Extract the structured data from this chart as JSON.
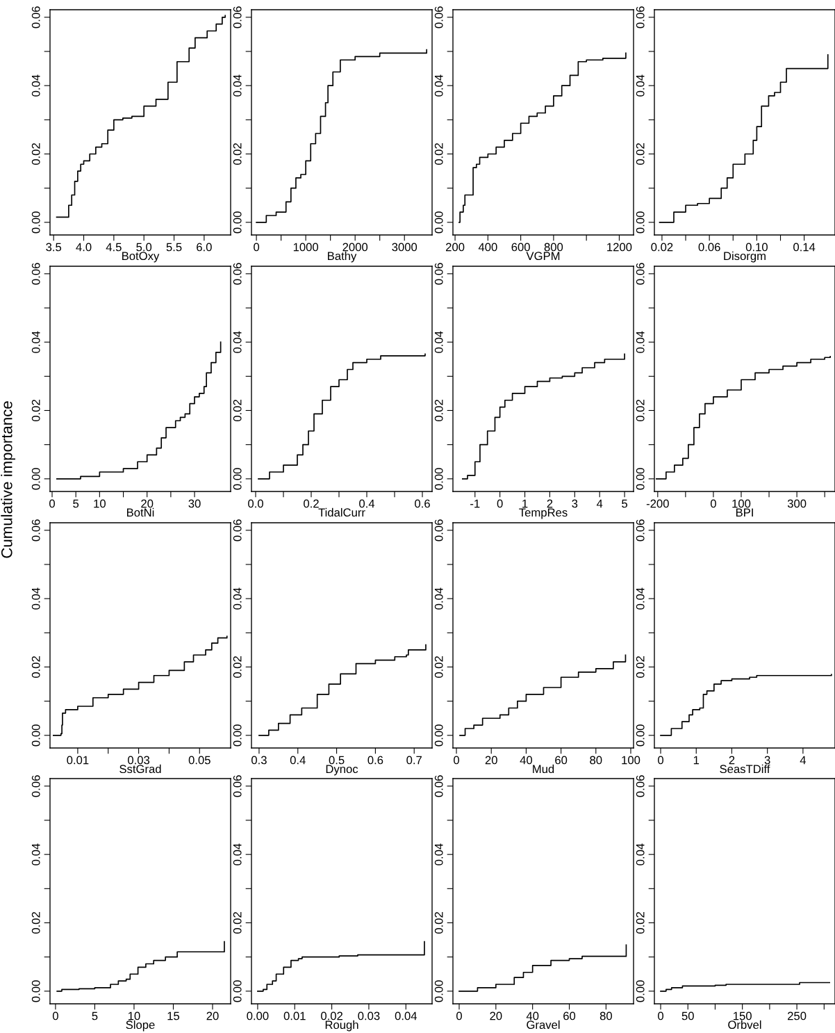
{
  "chart_data": [
    {
      "type": "step",
      "xlabel": "BotOxy",
      "color": "#000000",
      "x": [
        3.55,
        3.75,
        3.8,
        3.85,
        3.9,
        3.95,
        4.0,
        4.1,
        4.2,
        4.3,
        4.4,
        4.5,
        4.65,
        4.8,
        5.0,
        5.2,
        5.4,
        5.55,
        5.75,
        5.85,
        6.05,
        6.2,
        6.3,
        6.35
      ],
      "values": [
        0.0015,
        0.005,
        0.008,
        0.012,
        0.015,
        0.017,
        0.018,
        0.02,
        0.022,
        0.023,
        0.027,
        0.03,
        0.0305,
        0.031,
        0.034,
        0.036,
        0.041,
        0.047,
        0.051,
        0.054,
        0.056,
        0.058,
        0.06,
        0.0605
      ],
      "xlim": [
        3.44,
        6.44
      ],
      "xticks": [
        3.5,
        {
          "value": 4.0,
          "label": "4.0"
        },
        4.5,
        {
          "value": 5.0,
          "label": "5.0"
        },
        5.5,
        {
          "value": 6.0,
          "label": "6.0"
        }
      ],
      "ylim": [
        -0.0037,
        0.0622
      ],
      "yticks": [
        {
          "value": 0,
          "label": "0.00"
        },
        {
          "value": 0.01,
          "label": null
        },
        {
          "value": 0.02,
          "label": "0.02"
        },
        {
          "value": 0.03,
          "label": null
        },
        {
          "value": 0.04,
          "label": "0.04"
        },
        {
          "value": 0.05,
          "label": null
        },
        {
          "value": 0.06,
          "label": "0.06"
        }
      ]
    },
    {
      "type": "step",
      "xlabel": "Bathy",
      "color": "#000000",
      "x": [
        0,
        200,
        400,
        600,
        700,
        800,
        900,
        1000,
        1100,
        1200,
        1300,
        1400,
        1450,
        1550,
        1700,
        2000,
        2500,
        3450,
        3450
      ],
      "values": [
        0,
        0.002,
        0.003,
        0.006,
        0.01,
        0.013,
        0.014,
        0.018,
        0.023,
        0.026,
        0.031,
        0.035,
        0.04,
        0.044,
        0.0475,
        0.0485,
        0.0495,
        0.0495,
        0.0505
      ],
      "xlim": [
        -100,
        3560
      ],
      "xticks": [
        0,
        {
          "value": 500,
          "label": null
        },
        1000,
        {
          "value": 1500,
          "label": null
        },
        2000,
        {
          "value": 2500,
          "label": null
        },
        3000
      ],
      "ylim": [
        -0.0037,
        0.0622
      ],
      "yticks": [
        {
          "value": 0,
          "label": "0.00"
        },
        {
          "value": 0.01,
          "label": null
        },
        {
          "value": 0.02,
          "label": "0.02"
        },
        {
          "value": 0.03,
          "label": null
        },
        {
          "value": 0.04,
          "label": "0.04"
        },
        {
          "value": 0.05,
          "label": null
        },
        {
          "value": 0.06,
          "label": "0.06"
        }
      ]
    },
    {
      "type": "step",
      "xlabel": "VGPM",
      "color": "#000000",
      "x": [
        225,
        230,
        250,
        260,
        300,
        310,
        330,
        350,
        400,
        450,
        500,
        550,
        600,
        650,
        700,
        750,
        800,
        850,
        900,
        950,
        1000,
        1100,
        1240,
        1240
      ],
      "values": [
        0,
        0.003,
        0.005,
        0.008,
        0.008,
        0.016,
        0.017,
        0.019,
        0.02,
        0.022,
        0.024,
        0.026,
        0.029,
        0.031,
        0.032,
        0.034,
        0.037,
        0.04,
        0.043,
        0.047,
        0.0475,
        0.048,
        0.048,
        0.0495
      ],
      "xlim": [
        187,
        1287
      ],
      "xticks": [
        200,
        400,
        600,
        800,
        {
          "value": 1000,
          "label": null
        },
        1200
      ],
      "ylim": [
        -0.0037,
        0.0622
      ],
      "yticks": [
        {
          "value": 0,
          "label": "0.00"
        },
        {
          "value": 0.01,
          "label": null
        },
        {
          "value": 0.02,
          "label": "0.02"
        },
        {
          "value": 0.03,
          "label": null
        },
        {
          "value": 0.04,
          "label": "0.04"
        },
        {
          "value": 0.05,
          "label": null
        },
        {
          "value": 0.06,
          "label": "0.06"
        }
      ]
    },
    {
      "type": "step",
      "xlabel": "Disorgm",
      "color": "#000000",
      "x": [
        0.018,
        0.03,
        0.04,
        0.05,
        0.06,
        0.07,
        0.075,
        0.08,
        0.09,
        0.097,
        0.1,
        0.104,
        0.11,
        0.115,
        0.12,
        0.125,
        0.16,
        0.16
      ],
      "values": [
        0,
        0.003,
        0.005,
        0.0055,
        0.007,
        0.01,
        0.013,
        0.017,
        0.02,
        0.024,
        0.028,
        0.034,
        0.037,
        0.038,
        0.041,
        0.045,
        0.045,
        0.049
      ],
      "xlim": [
        0.0136,
        0.166
      ],
      "xticks": [
        {
          "value": 0.02,
          "label": "0.02"
        },
        {
          "value": 0.04,
          "label": null
        },
        {
          "value": 0.06,
          "label": "0.06"
        },
        {
          "value": 0.08,
          "label": null
        },
        {
          "value": 0.1,
          "label": "0.10"
        },
        {
          "value": 0.12,
          "label": null
        },
        {
          "value": 0.14,
          "label": "0.14"
        }
      ],
      "ylim": [
        -0.0037,
        0.0622
      ],
      "yticks": [
        {
          "value": 0,
          "label": "0.00"
        },
        {
          "value": 0.01,
          "label": null
        },
        {
          "value": 0.02,
          "label": "0.02"
        },
        {
          "value": 0.03,
          "label": null
        },
        {
          "value": 0.04,
          "label": "0.04"
        },
        {
          "value": 0.05,
          "label": null
        },
        {
          "value": 0.06,
          "label": "0.06"
        }
      ]
    },
    {
      "type": "step",
      "xlabel": "BotNi",
      "ylabel": "Cumulative importance",
      "color": "#000000",
      "x": [
        1,
        5,
        6,
        10,
        15,
        18,
        20,
        22,
        23,
        24,
        26,
        27,
        28,
        29,
        30,
        31,
        32,
        32.5,
        33.5,
        34.5,
        35.5,
        35.5
      ],
      "values": [
        0,
        0,
        0.0007,
        0.002,
        0.003,
        0.005,
        0.007,
        0.009,
        0.012,
        0.015,
        0.017,
        0.018,
        0.019,
        0.022,
        0.024,
        0.025,
        0.027,
        0.031,
        0.034,
        0.037,
        0.039,
        0.04
      ],
      "xlim": [
        -0.44,
        37.6
      ],
      "xticks": [
        0,
        5,
        10,
        {
          "value": 15,
          "label": null
        },
        20,
        {
          "value": 25,
          "label": null
        },
        30
      ],
      "ylim": [
        -0.0037,
        0.0622
      ],
      "yticks": [
        {
          "value": 0,
          "label": "0.00"
        },
        {
          "value": 0.01,
          "label": null
        },
        {
          "value": 0.02,
          "label": "0.02"
        },
        {
          "value": 0.03,
          "label": null
        },
        {
          "value": 0.04,
          "label": "0.04"
        },
        {
          "value": 0.05,
          "label": null
        },
        {
          "value": 0.06,
          "label": "0.06"
        }
      ]
    },
    {
      "type": "step",
      "xlabel": "TidalCurr",
      "color": "#000000",
      "x": [
        0.01,
        0.05,
        0.1,
        0.15,
        0.17,
        0.19,
        0.21,
        0.24,
        0.27,
        0.3,
        0.33,
        0.35,
        0.4,
        0.45,
        0.61,
        0.61
      ],
      "values": [
        0,
        0.002,
        0.004,
        0.007,
        0.01,
        0.014,
        0.019,
        0.023,
        0.027,
        0.029,
        0.032,
        0.034,
        0.035,
        0.036,
        0.036,
        0.0365
      ],
      "xlim": [
        -0.015,
        0.635
      ],
      "xticks": [
        {
          "value": 0,
          "label": "0.0"
        },
        {
          "value": 0.1,
          "label": null
        },
        0.2,
        {
          "value": 0.3,
          "label": null
        },
        0.4,
        {
          "value": 0.5,
          "label": null
        },
        0.6
      ],
      "ylim": [
        -0.0037,
        0.0622
      ],
      "yticks": [
        {
          "value": 0,
          "label": "0.00"
        },
        {
          "value": 0.01,
          "label": null
        },
        {
          "value": 0.02,
          "label": "0.02"
        },
        {
          "value": 0.03,
          "label": null
        },
        {
          "value": 0.04,
          "label": "0.04"
        },
        {
          "value": 0.05,
          "label": null
        },
        {
          "value": 0.06,
          "label": "0.06"
        }
      ]
    },
    {
      "type": "step",
      "xlabel": "TempRes",
      "color": "#000000",
      "x": [
        -1.5,
        -1.3,
        -1,
        -0.8,
        -0.5,
        -0.2,
        0,
        0.2,
        0.5,
        1,
        1.5,
        2,
        2.5,
        3,
        3.3,
        3.8,
        4.2,
        5,
        5
      ],
      "values": [
        0,
        0.001,
        0.005,
        0.01,
        0.014,
        0.018,
        0.021,
        0.023,
        0.025,
        0.027,
        0.0285,
        0.0295,
        0.03,
        0.031,
        0.0325,
        0.034,
        0.035,
        0.0355,
        0.0365
      ],
      "xlim": [
        -1.885,
        5.36
      ],
      "xticks": [
        {
          "value": -1,
          "label": "-1"
        },
        0,
        1,
        2,
        3,
        4,
        5
      ],
      "ylim": [
        -0.0037,
        0.0622
      ],
      "yticks": [
        {
          "value": 0,
          "label": "0.00"
        },
        {
          "value": 0.01,
          "label": null
        },
        {
          "value": 0.02,
          "label": "0.02"
        },
        {
          "value": 0.03,
          "label": null
        },
        {
          "value": 0.04,
          "label": "0.04"
        },
        {
          "value": 0.05,
          "label": null
        },
        {
          "value": 0.06,
          "label": "0.06"
        }
      ]
    },
    {
      "type": "step",
      "xlabel": "BPI",
      "color": "#000000",
      "x": [
        -205,
        -175,
        -170,
        -140,
        -110,
        -90,
        -70,
        -50,
        -30,
        0,
        50,
        100,
        150,
        200,
        250,
        300,
        350,
        400,
        420
      ],
      "values": [
        0,
        0,
        0.002,
        0.004,
        0.006,
        0.01,
        0.015,
        0.019,
        0.022,
        0.024,
        0.026,
        0.029,
        0.031,
        0.032,
        0.033,
        0.034,
        0.035,
        0.0355,
        0.0358
      ],
      "xlim": [
        -212,
        437
      ],
      "xticks": [
        {
          "value": -200,
          "label": "-200"
        },
        {
          "value": -100,
          "label": null
        },
        0,
        100,
        {
          "value": 200,
          "label": null
        },
        300,
        {
          "value": 400,
          "label": null
        }
      ],
      "ylim": [
        -0.0037,
        0.0622
      ],
      "yticks": [
        {
          "value": 0,
          "label": "0.00"
        },
        {
          "value": 0.01,
          "label": null
        },
        {
          "value": 0.02,
          "label": "0.02"
        },
        {
          "value": 0.03,
          "label": null
        },
        {
          "value": 0.04,
          "label": "0.04"
        },
        {
          "value": 0.05,
          "label": null
        },
        {
          "value": 0.06,
          "label": "0.06"
        }
      ]
    },
    {
      "type": "step",
      "xlabel": "SstGrad",
      "color": "#000000",
      "x": [
        0.002,
        0.0045,
        0.0048,
        0.005,
        0.006,
        0.01,
        0.015,
        0.02,
        0.025,
        0.03,
        0.035,
        0.04,
        0.045,
        0.048,
        0.052,
        0.054,
        0.056,
        0.059,
        0.059
      ],
      "values": [
        0,
        0.0005,
        0.003,
        0.0065,
        0.0075,
        0.0085,
        0.011,
        0.012,
        0.0135,
        0.0155,
        0.0175,
        0.019,
        0.0215,
        0.0235,
        0.025,
        0.027,
        0.0285,
        0.0285,
        0.029
      ],
      "xlim": [
        0.0009,
        0.0602
      ],
      "xticks": [
        0.01,
        {
          "value": 0.02,
          "label": null
        },
        0.03,
        {
          "value": 0.04,
          "label": null
        },
        0.05
      ],
      "ylim": [
        -0.0037,
        0.0622
      ],
      "yticks": [
        {
          "value": 0,
          "label": "0.00"
        },
        {
          "value": 0.01,
          "label": null
        },
        {
          "value": 0.02,
          "label": "0.02"
        },
        {
          "value": 0.03,
          "label": null
        },
        {
          "value": 0.04,
          "label": "0.04"
        },
        {
          "value": 0.05,
          "label": null
        },
        {
          "value": 0.06,
          "label": "0.06"
        }
      ]
    },
    {
      "type": "step",
      "xlabel": "Dynoc",
      "color": "#000000",
      "x": [
        0.3,
        0.32,
        0.325,
        0.35,
        0.38,
        0.41,
        0.45,
        0.48,
        0.51,
        0.55,
        0.6,
        0.65,
        0.68,
        0.685,
        0.73,
        0.73
      ],
      "values": [
        0,
        0,
        0.0015,
        0.0035,
        0.006,
        0.008,
        0.012,
        0.015,
        0.018,
        0.021,
        0.022,
        0.023,
        0.0235,
        0.025,
        0.0255,
        0.0265
      ],
      "xlim": [
        0.2804,
        0.7462
      ],
      "xticks": [
        0.3,
        0.4,
        0.5,
        0.6,
        0.7
      ],
      "ylim": [
        -0.0037,
        0.0622
      ],
      "yticks": [
        {
          "value": 0,
          "label": "0.00"
        },
        {
          "value": 0.01,
          "label": null
        },
        {
          "value": 0.02,
          "label": "0.02"
        },
        {
          "value": 0.03,
          "label": null
        },
        {
          "value": 0.04,
          "label": "0.04"
        },
        {
          "value": 0.05,
          "label": null
        },
        {
          "value": 0.06,
          "label": "0.06"
        }
      ]
    },
    {
      "type": "step",
      "xlabel": "Mud",
      "color": "#000000",
      "x": [
        2,
        5,
        10,
        15,
        25,
        30,
        35,
        40,
        50,
        60,
        70,
        80,
        90,
        97,
        97
      ],
      "values": [
        0,
        0.002,
        0.003,
        0.005,
        0.006,
        0.008,
        0.01,
        0.012,
        0.014,
        0.017,
        0.0185,
        0.0195,
        0.0215,
        0.023,
        0.0235
      ],
      "xlim": [
        -2,
        101.6
      ],
      "xticks": [
        0,
        20,
        40,
        60,
        80,
        100
      ],
      "ylim": [
        -0.0037,
        0.0622
      ],
      "yticks": [
        {
          "value": 0,
          "label": "0.00"
        },
        {
          "value": 0.01,
          "label": null
        },
        {
          "value": 0.02,
          "label": "0.02"
        },
        {
          "value": 0.03,
          "label": null
        },
        {
          "value": 0.04,
          "label": "0.04"
        },
        {
          "value": 0.05,
          "label": null
        },
        {
          "value": 0.06,
          "label": "0.06"
        }
      ]
    },
    {
      "type": "step",
      "xlabel": "SeasTDiff",
      "color": "#000000",
      "x": [
        0,
        0.3,
        0.6,
        0.8,
        0.9,
        1.1,
        1.2,
        1.3,
        1.5,
        1.7,
        2.0,
        2.5,
        2.7,
        4.8,
        4.8
      ],
      "values": [
        0,
        0.002,
        0.004,
        0.006,
        0.0075,
        0.008,
        0.012,
        0.013,
        0.015,
        0.016,
        0.0165,
        0.017,
        0.0175,
        0.0175,
        0.0178
      ],
      "xlim": [
        -0.176,
        4.9
      ],
      "xticks": [
        0,
        1,
        2,
        3,
        4
      ],
      "ylim": [
        -0.0037,
        0.0622
      ],
      "yticks": [
        {
          "value": 0,
          "label": "0.00"
        },
        {
          "value": 0.01,
          "label": null
        },
        {
          "value": 0.02,
          "label": "0.02"
        },
        {
          "value": 0.03,
          "label": null
        },
        {
          "value": 0.04,
          "label": "0.04"
        },
        {
          "value": 0.05,
          "label": null
        },
        {
          "value": 0.06,
          "label": "0.06"
        }
      ]
    },
    {
      "type": "step",
      "xlabel": "Slope",
      "color": "#000000",
      "x": [
        0.2,
        0.8,
        3,
        5,
        7,
        8,
        9,
        9.5,
        10.5,
        11.5,
        12.5,
        14,
        15.5,
        21.5,
        21.5
      ],
      "values": [
        0,
        0.0005,
        0.0007,
        0.001,
        0.002,
        0.003,
        0.0035,
        0.005,
        0.007,
        0.008,
        0.009,
        0.01,
        0.0115,
        0.0115,
        0.0145
      ],
      "xlim": [
        -0.7,
        22.3
      ],
      "xticks": [
        0,
        5,
        10,
        15,
        20
      ],
      "ylim": [
        -0.0037,
        0.0622
      ],
      "yticks": [
        {
          "value": 0,
          "label": "0.00"
        },
        {
          "value": 0.01,
          "label": null
        },
        {
          "value": 0.02,
          "label": "0.02"
        },
        {
          "value": 0.03,
          "label": null
        },
        {
          "value": 0.04,
          "label": "0.04"
        },
        {
          "value": 0.05,
          "label": null
        },
        {
          "value": 0.06,
          "label": "0.06"
        }
      ]
    },
    {
      "type": "step",
      "xlabel": "Rough",
      "color": "#000000",
      "x": [
        0,
        0.0015,
        0.0025,
        0.004,
        0.005,
        0.007,
        0.009,
        0.011,
        0.012,
        0.02,
        0.022,
        0.027,
        0.045,
        0.045
      ],
      "values": [
        0,
        0.0005,
        0.002,
        0.003,
        0.005,
        0.007,
        0.009,
        0.0095,
        0.01,
        0.01,
        0.0103,
        0.0106,
        0.0106,
        0.0145
      ],
      "xlim": [
        -0.00167,
        0.04707
      ],
      "xticks": [
        {
          "value": 0,
          "label": "0.00"
        },
        0.01,
        0.02,
        0.03,
        0.04
      ],
      "ylim": [
        -0.0037,
        0.0622
      ],
      "yticks": [
        {
          "value": 0,
          "label": "0.00"
        },
        {
          "value": 0.01,
          "label": null
        },
        {
          "value": 0.02,
          "label": "0.02"
        },
        {
          "value": 0.03,
          "label": null
        },
        {
          "value": 0.04,
          "label": "0.04"
        },
        {
          "value": 0.05,
          "label": null
        },
        {
          "value": 0.06,
          "label": "0.06"
        }
      ]
    },
    {
      "type": "step",
      "xlabel": "Gravel",
      "color": "#000000",
      "x": [
        0,
        10,
        20,
        30,
        35,
        40,
        50,
        60,
        67,
        91,
        91
      ],
      "values": [
        0,
        0.001,
        0.002,
        0.004,
        0.0055,
        0.0075,
        0.009,
        0.0095,
        0.0102,
        0.0102,
        0.0135
      ],
      "xlim": [
        -3.4,
        95
      ],
      "xticks": [
        0,
        20,
        40,
        60,
        80
      ],
      "ylim": [
        -0.0037,
        0.0622
      ],
      "yticks": [
        {
          "value": 0,
          "label": "0.00"
        },
        {
          "value": 0.01,
          "label": null
        },
        {
          "value": 0.02,
          "label": "0.02"
        },
        {
          "value": 0.03,
          "label": null
        },
        {
          "value": 0.04,
          "label": "0.04"
        },
        {
          "value": 0.05,
          "label": null
        },
        {
          "value": 0.06,
          "label": "0.06"
        }
      ]
    },
    {
      "type": "step",
      "xlabel": "Orbvel",
      "color": "#000000",
      "x": [
        0,
        10,
        20,
        40,
        100,
        120,
        250,
        255,
        310
      ],
      "values": [
        0,
        0.0005,
        0.001,
        0.0015,
        0.0017,
        0.002,
        0.002,
        0.0025,
        0.0025
      ],
      "xlim": [
        -11.5,
        320
      ],
      "xticks": [
        0,
        50,
        {
          "value": 100,
          "label": null
        },
        150,
        {
          "value": 200,
          "label": null
        },
        250,
        {
          "value": 300,
          "label": null
        }
      ],
      "ylim": [
        -0.0037,
        0.0622
      ],
      "yticks": [
        {
          "value": 0,
          "label": "0.00"
        },
        {
          "value": 0.01,
          "label": null
        },
        {
          "value": 0.02,
          "label": "0.02"
        },
        {
          "value": 0.03,
          "label": null
        },
        {
          "value": 0.04,
          "label": "0.04"
        },
        {
          "value": 0.05,
          "label": null
        },
        {
          "value": 0.06,
          "label": "0.06"
        }
      ]
    }
  ]
}
